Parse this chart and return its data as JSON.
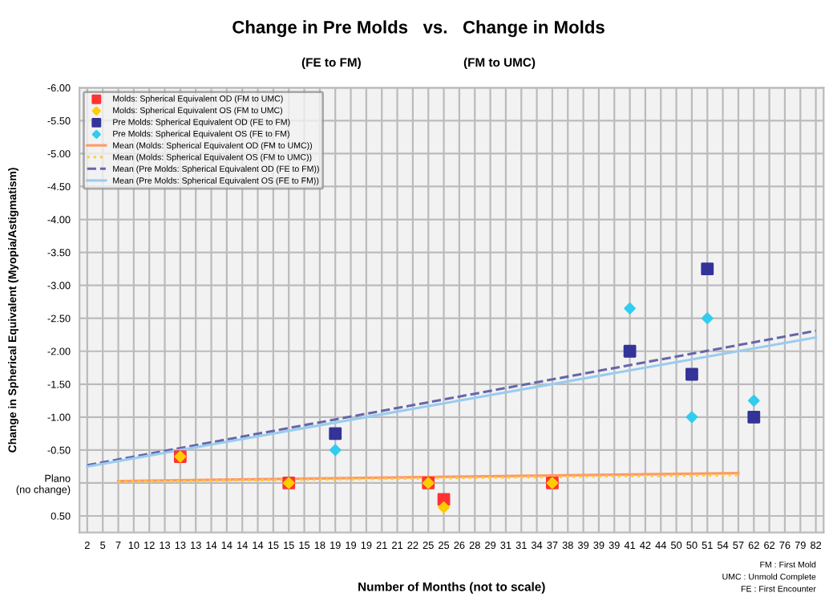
{
  "chart_data": {
    "type": "scatter",
    "title": "Change in Pre Molds   vs.   Change in Molds",
    "subtitle": "(FE to FM)                              (FM to UMC)",
    "xlabel": "Number of Months (not to scale)",
    "ylabel": "Change in Spherical Equivalent (Myopia/Astigmatism)",
    "categories": [
      "2",
      "5",
      "7",
      "10",
      "12",
      "13",
      "13",
      "13",
      "14",
      "14",
      "14",
      "14",
      "15",
      "15",
      "15",
      "18",
      "19",
      "19",
      "19",
      "21",
      "21",
      "22",
      "25",
      "25",
      "26",
      "28",
      "29",
      "31",
      "31",
      "34",
      "37",
      "38",
      "39",
      "39",
      "39",
      "41",
      "42",
      "44",
      "50",
      "50",
      "51",
      "54",
      "57",
      "62",
      "62",
      "76",
      "79",
      "82"
    ],
    "ylim": [
      0.75,
      -6
    ],
    "yticks": [
      {
        "value": -6,
        "label": "-6.00"
      },
      {
        "value": -5.5,
        "label": "-5.50"
      },
      {
        "value": -5,
        "label": "-5.00"
      },
      {
        "value": -4.5,
        "label": "-4.50"
      },
      {
        "value": -4,
        "label": "-4.00"
      },
      {
        "value": -3.5,
        "label": "-3.50"
      },
      {
        "value": -3,
        "label": "-3.00"
      },
      {
        "value": -2.5,
        "label": "-2.50"
      },
      {
        "value": -2,
        "label": "-2.00"
      },
      {
        "value": -1.5,
        "label": "-1.50"
      },
      {
        "value": -1,
        "label": "-1.00"
      },
      {
        "value": -0.5,
        "label": "-0.50"
      },
      {
        "value": 0,
        "label": "Plano\n(no change)"
      },
      {
        "value": 0.5,
        "label": "0.50"
      }
    ],
    "grid": true,
    "legend": "top left",
    "series": [
      {
        "name": "Molds: Spherical Equivalent OD (FM to UMC)",
        "marker": "square",
        "color": "#ff3333",
        "values": [
          null,
          null,
          null,
          null,
          null,
          null,
          -0.4,
          null,
          null,
          null,
          null,
          null,
          null,
          0,
          null,
          null,
          null,
          null,
          null,
          null,
          null,
          null,
          0,
          0.25,
          null,
          null,
          null,
          null,
          null,
          null,
          0,
          null,
          null,
          null,
          null,
          null,
          null,
          null,
          null,
          null,
          null,
          null,
          null,
          null,
          null,
          null,
          null,
          null
        ]
      },
      {
        "name": "Molds: Spherical Equivalent OS (FM to UMC)",
        "marker": "diamond",
        "color": "#ffcc00",
        "values": [
          null,
          null,
          null,
          null,
          null,
          null,
          -0.4,
          null,
          null,
          null,
          null,
          null,
          null,
          0,
          null,
          null,
          null,
          null,
          null,
          null,
          null,
          null,
          0,
          0.37,
          null,
          null,
          null,
          null,
          null,
          null,
          0,
          null,
          null,
          null,
          null,
          null,
          null,
          null,
          null,
          null,
          null,
          null,
          null,
          null,
          null,
          null,
          null,
          null
        ]
      },
      {
        "name": "Pre Molds: Spherical Equivalent OD (FE to FM)",
        "marker": "square",
        "color": "#333399",
        "values": [
          null,
          null,
          null,
          null,
          null,
          null,
          null,
          null,
          null,
          null,
          null,
          null,
          null,
          null,
          null,
          null,
          -0.75,
          null,
          null,
          null,
          null,
          null,
          null,
          null,
          null,
          null,
          null,
          null,
          null,
          null,
          null,
          null,
          null,
          null,
          null,
          -2.0,
          null,
          null,
          null,
          -1.65,
          -3.25,
          null,
          null,
          -1.0,
          null,
          null,
          null,
          null
        ]
      },
      {
        "name": "Pre Molds: Spherical Equivalent OS (FE to FM)",
        "marker": "diamond",
        "color": "#33ccee",
        "values": [
          null,
          null,
          null,
          null,
          null,
          null,
          null,
          null,
          null,
          null,
          null,
          null,
          null,
          null,
          null,
          null,
          -0.5,
          null,
          null,
          null,
          null,
          null,
          null,
          null,
          null,
          null,
          null,
          null,
          null,
          null,
          null,
          null,
          null,
          null,
          null,
          -2.65,
          null,
          null,
          null,
          -1.0,
          -2.5,
          null,
          null,
          -1.25,
          null,
          null,
          null,
          null
        ]
      },
      {
        "name": "Mean (Molds: Spherical Equivalent OD (FM to UMC))",
        "type": "line",
        "line_style": "solid",
        "color": "#ff9966",
        "x": [
          "7",
          "57"
        ],
        "values": [
          -0.03,
          -0.15
        ]
      },
      {
        "name": "Mean (Molds: Spherical Equivalent OS (FM to UMC))",
        "type": "line",
        "line_style": "dotted",
        "color": "#ffcc33",
        "x": [
          "7",
          "57"
        ],
        "values": [
          -0.02,
          -0.12
        ]
      },
      {
        "name": "Mean (Pre Molds: Spherical Equivalent OD (FE to FM))",
        "type": "line",
        "line_style": "dashed",
        "color": "#6666aa",
        "x": [
          "2",
          "82"
        ],
        "values": [
          -0.27,
          -2.31
        ]
      },
      {
        "name": "Mean (Pre Molds: Spherical Equivalent OS (FE to FM))",
        "type": "line",
        "line_style": "solid",
        "color": "#99ccee",
        "x": [
          "2",
          "82"
        ],
        "values": [
          -0.25,
          -2.21
        ]
      }
    ],
    "annotations": [
      "FM : First Mold",
      "UMC : Unmold Complete",
      "FE : First Encounter"
    ]
  }
}
